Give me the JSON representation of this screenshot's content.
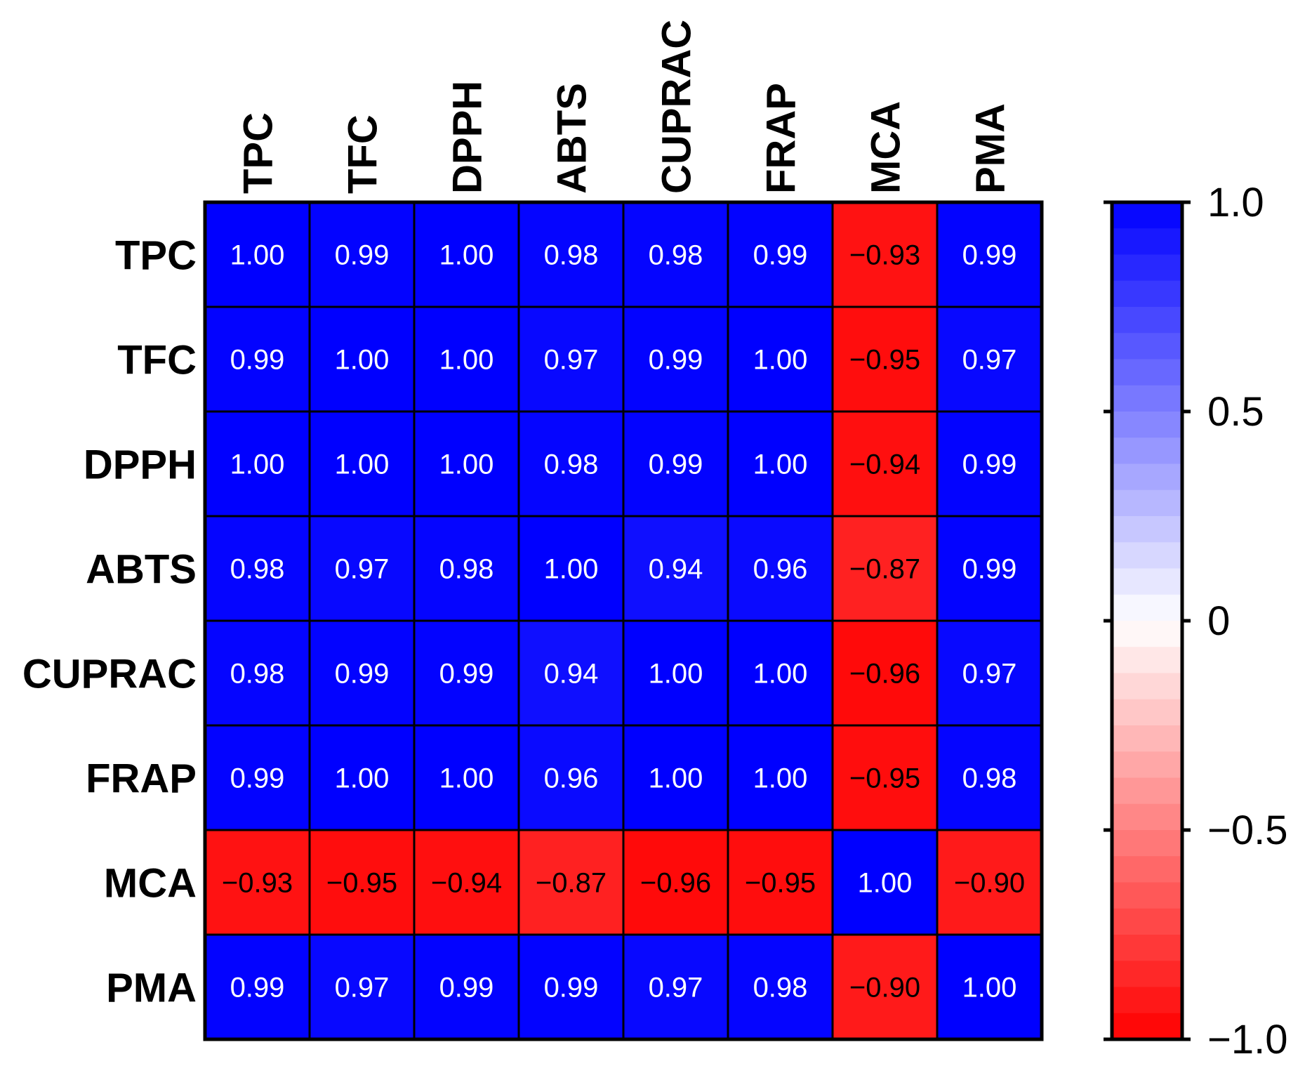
{
  "colors": {
    "positive": "#0000ff",
    "negative": "#ff0000",
    "zero": "#ffffff",
    "grid": "#000000",
    "text_on_blue": "#ffffff",
    "text_on_red": "#000000"
  },
  "chart_data": {
    "type": "heatmap",
    "title": "",
    "row_labels": [
      "TPC",
      "TFC",
      "DPPH",
      "ABTS",
      "CUPRAC",
      "FRAP",
      "MCA",
      "PMA"
    ],
    "col_labels": [
      "TPC",
      "TFC",
      "DPPH",
      "ABTS",
      "CUPRAC",
      "FRAP",
      "MCA",
      "PMA"
    ],
    "values": [
      [
        1.0,
        0.99,
        1.0,
        0.98,
        0.98,
        0.99,
        -0.93,
        0.99
      ],
      [
        0.99,
        1.0,
        1.0,
        0.97,
        0.99,
        1.0,
        -0.95,
        0.97
      ],
      [
        1.0,
        1.0,
        1.0,
        0.98,
        0.99,
        1.0,
        -0.94,
        0.99
      ],
      [
        0.98,
        0.97,
        0.98,
        1.0,
        0.94,
        0.96,
        -0.87,
        0.99
      ],
      [
        0.98,
        0.99,
        0.99,
        0.94,
        1.0,
        1.0,
        -0.96,
        0.97
      ],
      [
        0.99,
        1.0,
        1.0,
        0.96,
        1.0,
        1.0,
        -0.95,
        0.98
      ],
      [
        -0.93,
        -0.95,
        -0.94,
        -0.87,
        -0.96,
        -0.95,
        1.0,
        -0.9
      ],
      [
        0.99,
        0.97,
        0.99,
        0.99,
        0.97,
        0.98,
        -0.9,
        1.0
      ]
    ],
    "cell_labels": [
      [
        "1.00",
        "0.99",
        "1.00",
        "0.98",
        "0.98",
        "0.99",
        "−0.93",
        "0.99"
      ],
      [
        "0.99",
        "1.00",
        "1.00",
        "0.97",
        "0.99",
        "1.00",
        "−0.95",
        "0.97"
      ],
      [
        "1.00",
        "1.00",
        "1.00",
        "0.98",
        "0.99",
        "1.00",
        "−0.94",
        "0.99"
      ],
      [
        "0.98",
        "0.97",
        "0.98",
        "1.00",
        "0.94",
        "0.96",
        "−0.87",
        "0.99"
      ],
      [
        "0.98",
        "0.99",
        "0.99",
        "0.94",
        "1.00",
        "1.00",
        "−0.96",
        "0.97"
      ],
      [
        "0.99",
        "1.00",
        "1.00",
        "0.96",
        "1.00",
        "1.00",
        "−0.95",
        "0.98"
      ],
      [
        "−0.93",
        "−0.95",
        "−0.94",
        "−0.87",
        "−0.96",
        "−0.95",
        "1.00",
        "−0.90"
      ],
      [
        "0.99",
        "0.97",
        "0.99",
        "0.99",
        "0.97",
        "0.98",
        "−0.90",
        "1.00"
      ]
    ],
    "colorbar": {
      "range": [
        -1.0,
        1.0
      ],
      "steps": 32,
      "ticks": [
        1.0,
        0.5,
        0,
        -0.5,
        -1.0
      ],
      "tick_labels": [
        "1.0",
        "0.5",
        "0",
        "−0.5",
        "−1.0"
      ]
    }
  }
}
